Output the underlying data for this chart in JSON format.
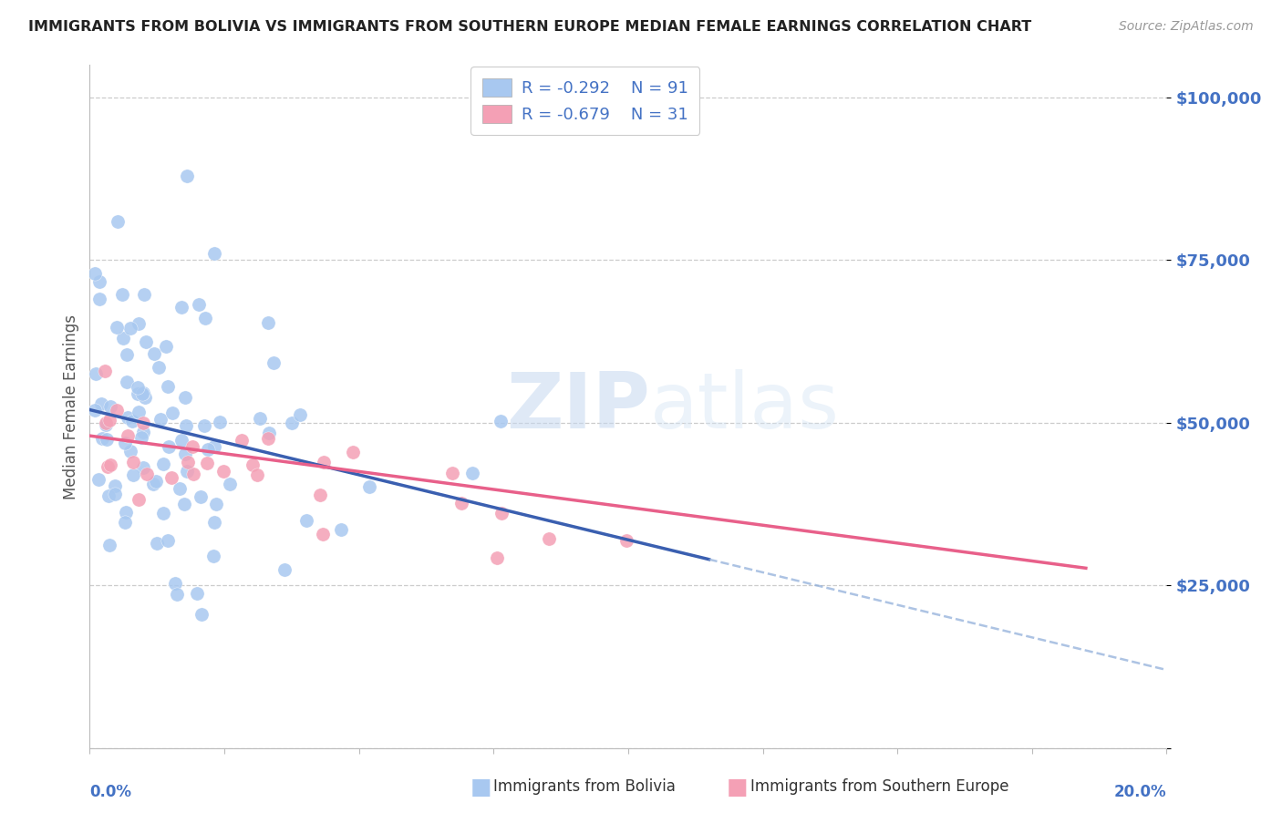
{
  "title": "IMMIGRANTS FROM BOLIVIA VS IMMIGRANTS FROM SOUTHERN EUROPE MEDIAN FEMALE EARNINGS CORRELATION CHART",
  "source": "Source: ZipAtlas.com",
  "ylabel": "Median Female Earnings",
  "xlim": [
    0.0,
    0.2
  ],
  "ylim": [
    0,
    105000
  ],
  "bolivia_R": -0.292,
  "bolivia_N": 91,
  "southern_europe_R": -0.679,
  "southern_europe_N": 31,
  "bolivia_color": "#a8c8f0",
  "southern_europe_color": "#f4a0b5",
  "bolivia_line_color": "#3a5fb0",
  "southern_europe_line_color": "#e8608a",
  "bolivia_dash_color": "#8aaad8",
  "watermark_zip": "ZIP",
  "watermark_atlas": "atlas",
  "background_color": "#ffffff",
  "grid_color": "#cccccc",
  "title_color": "#222222",
  "right_tick_color": "#4472c4",
  "legend_R_color": "#4472c4",
  "legend_N_color": "#4472c4"
}
